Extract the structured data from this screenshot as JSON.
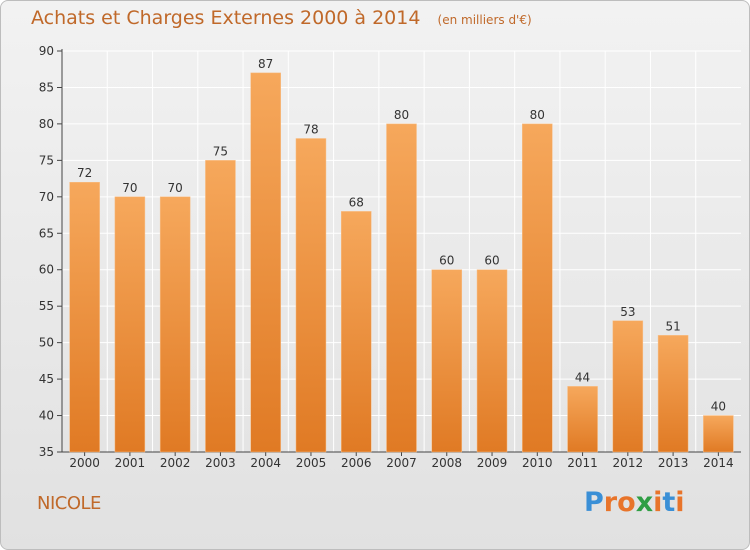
{
  "header": {
    "title": "Achats et Charges Externes 2000 à 2014",
    "subtitle": "(en milliers d'€)"
  },
  "commune": "NICOLE",
  "logo": {
    "text": "Proxiti",
    "letter_colors": [
      "#3a8fd6",
      "#e8742a",
      "#e8742a",
      "#2f9e44",
      "#e8742a",
      "#3a8fd6",
      "#e8742a"
    ]
  },
  "colors": {
    "bar_top": "#f6a85c",
    "bar_bottom": "#e07a24",
    "text_accent": "#c0692a",
    "grid": "#ffffff"
  },
  "chart_data": {
    "type": "bar",
    "title": "Achats et Charges Externes 2000 à 2014",
    "subtitle": "(en milliers d'€)",
    "categories": [
      "2000",
      "2001",
      "2002",
      "2003",
      "2004",
      "2005",
      "2006",
      "2007",
      "2008",
      "2009",
      "2010",
      "2011",
      "2012",
      "2013",
      "2014"
    ],
    "values": [
      72,
      70,
      70,
      75,
      87,
      78,
      68,
      80,
      60,
      60,
      80,
      44,
      53,
      51,
      40
    ],
    "ylim": [
      35,
      90
    ],
    "yticks": [
      35,
      40,
      45,
      50,
      55,
      60,
      65,
      70,
      75,
      80,
      85,
      90
    ],
    "grid": true,
    "xlabel": "",
    "ylabel": ""
  }
}
